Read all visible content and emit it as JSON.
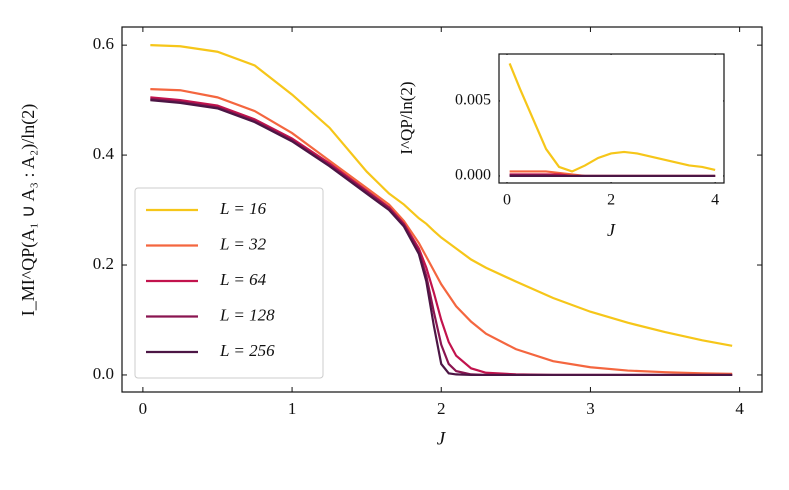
{
  "chart_data": [
    {
      "type": "line",
      "xlabel": "J",
      "ylabel": "I_MI^QP(A₁ ∪ A₃ : A₂)/ln(2)",
      "x": [
        0.05,
        0.25,
        0.5,
        0.75,
        1.0,
        1.25,
        1.5,
        1.65,
        1.75,
        1.85,
        1.9,
        1.95,
        2.0,
        2.05,
        2.1,
        2.2,
        2.3,
        2.5,
        2.75,
        3.0,
        3.25,
        3.5,
        3.75,
        3.95
      ],
      "series": [
        {
          "name": "L = 16",
          "color": "#f6c619",
          "values": [
            0.6,
            0.598,
            0.588,
            0.563,
            0.51,
            0.45,
            0.37,
            0.33,
            0.31,
            0.285,
            0.275,
            0.262,
            0.25,
            0.24,
            0.23,
            0.21,
            0.195,
            0.17,
            0.14,
            0.115,
            0.095,
            0.078,
            0.063,
            0.053
          ]
        },
        {
          "name": "L = 32",
          "color": "#f4663f",
          "values": [
            0.52,
            0.518,
            0.505,
            0.48,
            0.44,
            0.39,
            0.34,
            0.31,
            0.28,
            0.24,
            0.215,
            0.19,
            0.165,
            0.145,
            0.125,
            0.097,
            0.075,
            0.047,
            0.025,
            0.014,
            0.008,
            0.005,
            0.003,
            0.002
          ]
        },
        {
          "name": "L = 64",
          "color": "#c2134d",
          "values": [
            0.505,
            0.5,
            0.49,
            0.465,
            0.43,
            0.385,
            0.335,
            0.305,
            0.275,
            0.23,
            0.195,
            0.15,
            0.1,
            0.06,
            0.035,
            0.012,
            0.004,
            0.001,
            0,
            0,
            0,
            0,
            0,
            0
          ]
        },
        {
          "name": "L = 128",
          "color": "#8a1550",
          "values": [
            0.502,
            0.497,
            0.487,
            0.462,
            0.427,
            0.382,
            0.333,
            0.303,
            0.273,
            0.225,
            0.18,
            0.115,
            0.055,
            0.02,
            0.007,
            0.001,
            0,
            0,
            0,
            0,
            0,
            0,
            0,
            0
          ]
        },
        {
          "name": "L = 256",
          "color": "#4c1645",
          "values": [
            0.5,
            0.495,
            0.485,
            0.46,
            0.425,
            0.38,
            0.33,
            0.3,
            0.27,
            0.22,
            0.17,
            0.09,
            0.02,
            0.003,
            0.001,
            0,
            0,
            0,
            0,
            0,
            0,
            0,
            0,
            0
          ]
        }
      ],
      "xlim": [
        -0.14,
        4.15
      ],
      "ylim": [
        -0.031,
        0.633
      ],
      "xticks": [
        0,
        1,
        2,
        3,
        4
      ],
      "yticks": [
        {
          "value": 0,
          "label": "0.0"
        },
        {
          "value": 0.2,
          "label": "0.2"
        },
        {
          "value": 0.4,
          "label": "0.4"
        },
        {
          "value": 0.6,
          "label": "0.6"
        }
      ],
      "legend": "lower left"
    },
    {
      "type": "line",
      "xlabel": "J",
      "ylabel": "I^QP/ln(2)",
      "x": [
        0.05,
        0.25,
        0.5,
        0.75,
        1.0,
        1.25,
        1.5,
        1.75,
        2.0,
        2.25,
        2.5,
        2.75,
        3.0,
        3.25,
        3.5,
        3.75,
        4.0
      ],
      "series": [
        {
          "color": "#f6c619",
          "values": [
            0.0075,
            0.0058,
            0.0038,
            0.0018,
            0.0006,
            0.0003,
            0.0007,
            0.0012,
            0.0015,
            0.0016,
            0.0015,
            0.0013,
            0.0011,
            0.0009,
            0.0007,
            0.0006,
            0.0004
          ]
        },
        {
          "color": "#f4663f",
          "values": [
            0.0003,
            0.0003,
            0.0003,
            0.0003,
            0.0002,
            0.0001,
            0,
            0,
            0,
            0,
            0,
            0,
            0,
            0,
            0,
            0,
            0
          ]
        },
        {
          "color": "#c2134d",
          "values": [
            0.0001,
            0.0001,
            0.0001,
            0.0001,
            0.0001,
            0,
            0,
            0,
            0,
            0,
            0,
            0,
            0,
            0,
            0,
            0,
            0
          ]
        },
        {
          "color": "#8a1550",
          "values": [
            5e-05,
            5e-05,
            5e-05,
            5e-05,
            0,
            0,
            0,
            0,
            0,
            0,
            0,
            0,
            0,
            0,
            0,
            0,
            0
          ]
        },
        {
          "color": "#4c1645",
          "values": [
            0,
            0,
            0,
            0,
            0,
            0,
            0,
            0,
            0,
            0,
            0,
            0,
            0,
            0,
            0,
            0,
            0
          ]
        }
      ],
      "xlim": [
        -0.154,
        4.17
      ],
      "ylim": [
        -0.00047,
        0.00813
      ],
      "xticks": [
        0,
        2,
        4
      ],
      "yticks": [
        {
          "value": 0,
          "label": "0.000"
        },
        {
          "value": 0.005,
          "label": "0.005"
        }
      ]
    }
  ]
}
